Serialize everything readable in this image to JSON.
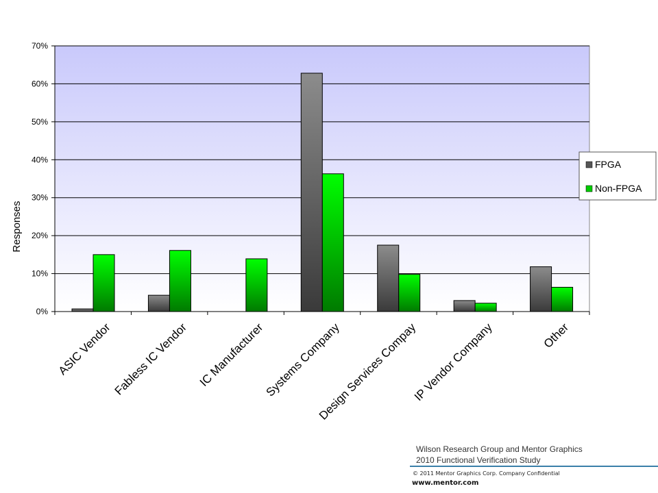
{
  "chart_data": {
    "type": "bar",
    "ylabel": "Responses",
    "xlabel": "",
    "ylim": [
      0,
      70
    ],
    "y_ticks": [
      "0%",
      "10%",
      "20%",
      "30%",
      "40%",
      "50%",
      "60%",
      "70%"
    ],
    "grid": true,
    "legend_position": "right",
    "categories": [
      "ASIC Vendor",
      "Fabless IC Vendor",
      "IC Manufacturer",
      "Systems Company",
      "Design Services Compay",
      "IP Vendor Company",
      "Other"
    ],
    "series": [
      {
        "name": "FPGA",
        "values": [
          0.7,
          4.3,
          0,
          62.8,
          17.5,
          2.9,
          11.8
        ],
        "color": "#808080"
      },
      {
        "name": "Non-FPGA",
        "values": [
          15.0,
          16.1,
          13.9,
          36.3,
          9.8,
          2.2,
          6.4
        ],
        "color": "#00ff00"
      }
    ]
  },
  "footer": {
    "source_line1": "Wilson Research Group and Mentor Graphics",
    "source_line2": "2010 Functional Verification Study",
    "copyright": "© 2011 Mentor Graphics Corp. Company Confidential",
    "website": "www.mentor.com"
  }
}
